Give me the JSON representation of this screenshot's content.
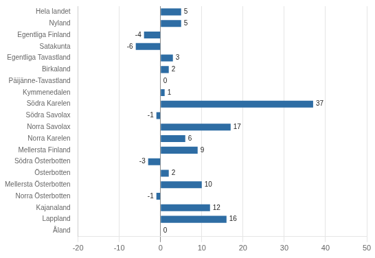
{
  "chart_data": {
    "type": "bar",
    "orientation": "horizontal",
    "categories": [
      "Hela landet",
      "Nyland",
      "Egentliga Finland",
      "Satakunta",
      "Egentliga Tavastland",
      "Birkaland",
      "Päijänne-Tavastland",
      "Kymmenedalen",
      "Södra Karelen",
      "Södra Savolax",
      "Norra Savolax",
      "Norra Karelen",
      "Mellersta Finland",
      "Södra Österbotten",
      "Österbotten",
      "Mellersta Österbotten",
      "Norra Österbotten",
      "Kajanaland",
      "Lappland",
      "Åland"
    ],
    "values": [
      5,
      5,
      -4,
      -6,
      3,
      2,
      0,
      1,
      37,
      -1,
      17,
      6,
      9,
      -3,
      2,
      10,
      -1,
      12,
      16,
      0
    ],
    "color": "#2E6DA4",
    "xlim": [
      -20,
      50
    ],
    "xticks": [
      -20,
      -10,
      0,
      10,
      20,
      30,
      40,
      50
    ],
    "grid": true,
    "data_labels": true
  }
}
